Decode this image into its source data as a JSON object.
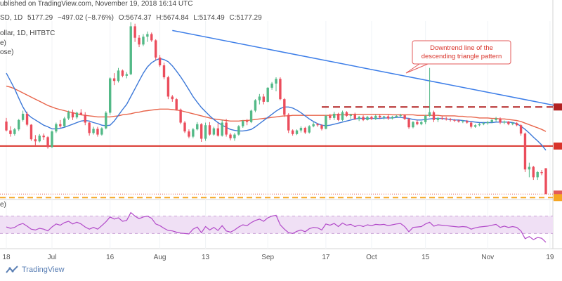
{
  "header": {
    "published": "ublished on TradingView.com, November 19, 2018 16:14 UTC",
    "symbol": "SD, 1D",
    "last": "5177.29",
    "change": "−497.02 (−8.76%)",
    "open_label": "O:",
    "open": "5674.37",
    "high_label": "H:",
    "high": "5674.84",
    "low_label": "L:",
    "low": "5174.49",
    "close_label": "C:",
    "close": "5177.29",
    "pair_line": "ollar, 1D, HITBTC",
    "ma1_label": "e)",
    "ma2_label": "ose)",
    "rsi_label": "e)"
  },
  "annotation": {
    "line1": "Downtrend line of the",
    "line2": "descending triangle pattern"
  },
  "footer": {
    "brand": "TradingView"
  },
  "colors": {
    "up": "#53b987",
    "down": "#eb4d5c",
    "ma_fast": "#3c78d8",
    "ma_slow": "#e8644a",
    "trend": "#3d7ee8",
    "support": "#d9342b",
    "resistance": "#b22222",
    "orange": "#f5a623",
    "rsi": "#b24ac9",
    "rsi_band": "#f0e0f5",
    "price_dotted": "#e35a5a"
  },
  "chart_data": {
    "type": "candlestick",
    "x_axis": {
      "ticks": [
        {
          "i": 0,
          "label": "18"
        },
        {
          "i": 11,
          "label": "Jul"
        },
        {
          "i": 25,
          "label": "16"
        },
        {
          "i": 37,
          "label": "Aug"
        },
        {
          "i": 48,
          "label": "13"
        },
        {
          "i": 63,
          "label": "Sep"
        },
        {
          "i": 77,
          "label": "17"
        },
        {
          "i": 88,
          "label": "Oct"
        },
        {
          "i": 101,
          "label": "15"
        },
        {
          "i": 116,
          "label": "Nov"
        },
        {
          "i": 131,
          "label": "19"
        }
      ]
    },
    "ylim": [
      5100,
      8500
    ],
    "candles": [
      [
        6570,
        6640,
        6380,
        6400
      ],
      [
        6400,
        6480,
        6280,
        6330
      ],
      [
        6330,
        6450,
        6300,
        6420
      ],
      [
        6420,
        6620,
        6390,
        6600
      ],
      [
        6600,
        6780,
        6570,
        6720
      ],
      [
        6720,
        6760,
        6480,
        6510
      ],
      [
        6510,
        6520,
        6200,
        6230
      ],
      [
        6230,
        6310,
        6100,
        6190
      ],
      [
        6190,
        6330,
        6170,
        6300
      ],
      [
        6300,
        6340,
        6220,
        6270
      ],
      [
        6270,
        6290,
        6050,
        6080
      ],
      [
        6080,
        6400,
        6060,
        6380
      ],
      [
        6380,
        6550,
        6350,
        6520
      ],
      [
        6520,
        6600,
        6450,
        6480
      ],
      [
        6480,
        6660,
        6460,
        6630
      ],
      [
        6630,
        6780,
        6600,
        6750
      ],
      [
        6750,
        6800,
        6600,
        6650
      ],
      [
        6650,
        6760,
        6620,
        6740
      ],
      [
        6740,
        6810,
        6690,
        6700
      ],
      [
        6700,
        6750,
        6500,
        6550
      ],
      [
        6550,
        6560,
        6300,
        6350
      ],
      [
        6350,
        6470,
        6320,
        6430
      ],
      [
        6430,
        6470,
        6280,
        6320
      ],
      [
        6320,
        6460,
        6300,
        6440
      ],
      [
        6440,
        6770,
        6420,
        6740
      ],
      [
        6740,
        7420,
        6700,
        7400
      ],
      [
        7400,
        7500,
        7270,
        7350
      ],
      [
        7350,
        7600,
        7320,
        7550
      ],
      [
        7550,
        7570,
        7420,
        7450
      ],
      [
        7450,
        7520,
        7400,
        7480
      ],
      [
        7480,
        8480,
        7460,
        8400
      ],
      [
        8400,
        8450,
        8100,
        8180
      ],
      [
        8180,
        8230,
        8000,
        8050
      ],
      [
        8050,
        8250,
        8020,
        8200
      ],
      [
        8200,
        8300,
        8100,
        8250
      ],
      [
        8250,
        8280,
        8100,
        8130
      ],
      [
        8130,
        8150,
        7750,
        7800
      ],
      [
        7800,
        7850,
        7620,
        7650
      ],
      [
        7650,
        7700,
        7380,
        7420
      ],
      [
        7420,
        7450,
        7000,
        7050
      ],
      [
        7050,
        7080,
        6950,
        7000
      ],
      [
        7000,
        7020,
        6780,
        6800
      ],
      [
        6800,
        6820,
        6520,
        6550
      ],
      [
        6550,
        6580,
        6350,
        6380
      ],
      [
        6380,
        6420,
        6250,
        6280
      ],
      [
        6280,
        6450,
        6250,
        6420
      ],
      [
        6420,
        6560,
        6400,
        6520
      ],
      [
        6520,
        6540,
        6180,
        6240
      ],
      [
        6240,
        6550,
        6200,
        6500
      ],
      [
        6500,
        6560,
        6300,
        6320
      ],
      [
        6320,
        6470,
        6300,
        6440
      ],
      [
        6440,
        6540,
        6280,
        6300
      ],
      [
        6300,
        6600,
        6280,
        6550
      ],
      [
        6550,
        6620,
        6280,
        6320
      ],
      [
        6320,
        6350,
        6210,
        6250
      ],
      [
        6250,
        6350,
        6200,
        6320
      ],
      [
        6320,
        6500,
        6300,
        6480
      ],
      [
        6480,
        6600,
        6450,
        6580
      ],
      [
        6580,
        6620,
        6500,
        6560
      ],
      [
        6560,
        6800,
        6540,
        6780
      ],
      [
        6780,
        7000,
        6750,
        6980
      ],
      [
        6980,
        7100,
        6900,
        7050
      ],
      [
        7050,
        7100,
        6900,
        6950
      ],
      [
        6950,
        7230,
        6940,
        7220
      ],
      [
        7220,
        7330,
        7180,
        7300
      ],
      [
        7300,
        7420,
        7150,
        7390
      ],
      [
        7390,
        7420,
        6980,
        7000
      ],
      [
        7000,
        7020,
        6660,
        6700
      ],
      [
        6700,
        6730,
        6350,
        6400
      ],
      [
        6400,
        6420,
        6300,
        6330
      ],
      [
        6330,
        6420,
        6310,
        6400
      ],
      [
        6400,
        6480,
        6360,
        6450
      ],
      [
        6450,
        6470,
        6330,
        6360
      ],
      [
        6360,
        6500,
        6340,
        6480
      ],
      [
        6480,
        6560,
        6460,
        6520
      ],
      [
        6520,
        6540,
        6470,
        6500
      ],
      [
        6500,
        6520,
        6400,
        6430
      ],
      [
        6430,
        6700,
        6420,
        6680
      ],
      [
        6680,
        6720,
        6600,
        6640
      ],
      [
        6640,
        6760,
        6600,
        6720
      ],
      [
        6720,
        6740,
        6580,
        6600
      ],
      [
        6600,
        6780,
        6580,
        6750
      ],
      [
        6750,
        6770,
        6660,
        6680
      ],
      [
        6680,
        6720,
        6620,
        6700
      ],
      [
        6700,
        6740,
        6600,
        6620
      ],
      [
        6620,
        6680,
        6580,
        6660
      ],
      [
        6660,
        6690,
        6580,
        6600
      ],
      [
        6600,
        6680,
        6590,
        6660
      ],
      [
        6660,
        6680,
        6600,
        6620
      ],
      [
        6620,
        6700,
        6600,
        6680
      ],
      [
        6680,
        6700,
        6620,
        6650
      ],
      [
        6650,
        6680,
        6610,
        6670
      ],
      [
        6670,
        6700,
        6600,
        6630
      ],
      [
        6630,
        6680,
        6610,
        6660
      ],
      [
        6660,
        6700,
        6640,
        6680
      ],
      [
        6680,
        6720,
        6650,
        6690
      ],
      [
        6690,
        6700,
        6600,
        6620
      ],
      [
        6620,
        6640,
        6430,
        6460
      ],
      [
        6460,
        6580,
        6440,
        6560
      ],
      [
        6560,
        6600,
        6500,
        6520
      ],
      [
        6520,
        6580,
        6500,
        6560
      ],
      [
        6560,
        6700,
        6520,
        6680
      ],
      [
        6680,
        7600,
        6660,
        6750
      ],
      [
        6750,
        6780,
        6560,
        6600
      ],
      [
        6600,
        6660,
        6560,
        6640
      ],
      [
        6640,
        6680,
        6600,
        6630
      ],
      [
        6630,
        6660,
        6590,
        6610
      ],
      [
        6610,
        6640,
        6570,
        6600
      ],
      [
        6600,
        6620,
        6560,
        6590
      ],
      [
        6590,
        6610,
        6550,
        6570
      ],
      [
        6570,
        6600,
        6540,
        6580
      ],
      [
        6580,
        6600,
        6530,
        6550
      ],
      [
        6550,
        6570,
        6440,
        6470
      ],
      [
        6470,
        6520,
        6450,
        6500
      ],
      [
        6500,
        6540,
        6480,
        6520
      ],
      [
        6520,
        6560,
        6500,
        6540
      ],
      [
        6540,
        6580,
        6510,
        6560
      ],
      [
        6560,
        6620,
        6540,
        6600
      ],
      [
        6600,
        6660,
        6570,
        6630
      ],
      [
        6630,
        6650,
        6520,
        6550
      ],
      [
        6550,
        6590,
        6520,
        6570
      ],
      [
        6570,
        6580,
        6500,
        6520
      ],
      [
        6520,
        6560,
        6500,
        6540
      ],
      [
        6540,
        6560,
        6480,
        6500
      ],
      [
        6500,
        6520,
        6300,
        6340
      ],
      [
        6340,
        6360,
        5600,
        5650
      ],
      [
        5650,
        5780,
        5500,
        5700
      ],
      [
        5700,
        5720,
        5450,
        5500
      ],
      [
        5500,
        5620,
        5450,
        5600
      ],
      [
        5600,
        5640,
        5540,
        5580
      ],
      [
        5674,
        5675,
        5174,
        5177
      ]
    ],
    "ma_fast": [
      7500,
      7350,
      7200,
      7020,
      6850,
      6720,
      6650,
      6600,
      6550,
      6500,
      6470,
      6430,
      6430,
      6440,
      6460,
      6490,
      6520,
      6550,
      6580,
      6590,
      6580,
      6550,
      6530,
      6500,
      6490,
      6500,
      6580,
      6690,
      6800,
      6900,
      7050,
      7200,
      7350,
      7500,
      7620,
      7700,
      7750,
      7780,
      7760,
      7720,
      7640,
      7540,
      7430,
      7310,
      7180,
      7050,
      6940,
      6840,
      6760,
      6680,
      6610,
      6550,
      6500,
      6460,
      6420,
      6400,
      6390,
      6390,
      6400,
      6420,
      6470,
      6530,
      6590,
      6650,
      6710,
      6770,
      6820,
      6850,
      6850,
      6830,
      6790,
      6740,
      6680,
      6620,
      6570,
      6530,
      6500,
      6490,
      6500,
      6520,
      6540,
      6560,
      6580,
      6600,
      6620,
      6630,
      6630,
      6630,
      6630,
      6630,
      6630,
      6640,
      6640,
      6640,
      6650,
      6650,
      6640,
      6630,
      6610,
      6600,
      6600,
      6610,
      6620,
      6630,
      6630,
      6630,
      6620,
      6610,
      6600,
      6600,
      6590,
      6580,
      6570,
      6560,
      6550,
      6550,
      6550,
      6550,
      6560,
      6560,
      6560,
      6560,
      6550,
      6530,
      6480,
      6420,
      6350,
      6270,
      6200,
      6120,
      6020
    ],
    "ma_slow": [
      7250,
      7230,
      7200,
      7160,
      7120,
      7080,
      7040,
      7000,
      6960,
      6920,
      6880,
      6850,
      6820,
      6800,
      6780,
      6760,
      6740,
      6720,
      6700,
      6690,
      6680,
      6670,
      6660,
      6660,
      6660,
      6660,
      6670,
      6680,
      6700,
      6710,
      6720,
      6740,
      6750,
      6770,
      6780,
      6790,
      6800,
      6810,
      6810,
      6810,
      6800,
      6790,
      6780,
      6760,
      6740,
      6720,
      6700,
      6680,
      6660,
      6640,
      6620,
      6610,
      6600,
      6590,
      6580,
      6580,
      6580,
      6590,
      6590,
      6600,
      6610,
      6620,
      6630,
      6640,
      6650,
      6660,
      6670,
      6680,
      6680,
      6690,
      6690,
      6690,
      6690,
      6690,
      6690,
      6690,
      6690,
      6690,
      6690,
      6700,
      6700,
      6700,
      6700,
      6710,
      6710,
      6710,
      6710,
      6710,
      6710,
      6710,
      6710,
      6710,
      6710,
      6700,
      6700,
      6700,
      6700,
      6700,
      6700,
      6690,
      6690,
      6690,
      6690,
      6690,
      6690,
      6680,
      6680,
      6680,
      6680,
      6670,
      6670,
      6660,
      6660,
      6650,
      6640,
      6640,
      6640,
      6630,
      6630,
      6620,
      6620,
      6610,
      6600,
      6590,
      6570,
      6540,
      6510,
      6480,
      6450,
      6420,
      6380
    ],
    "rsi": [
      45,
      42,
      44,
      50,
      53,
      47,
      40,
      38,
      42,
      40,
      36,
      45,
      52,
      49,
      55,
      58,
      52,
      56,
      52,
      45,
      40,
      44,
      40,
      48,
      57,
      68,
      63,
      66,
      58,
      60,
      78,
      70,
      64,
      68,
      70,
      65,
      52,
      48,
      42,
      37,
      36,
      33,
      31,
      30,
      29,
      40,
      45,
      32,
      46,
      38,
      44,
      37,
      48,
      36,
      33,
      38,
      45,
      50,
      48,
      55,
      60,
      63,
      58,
      66,
      70,
      72,
      50,
      40,
      32,
      30,
      35,
      38,
      34,
      41,
      44,
      43,
      38,
      52,
      49,
      53,
      46,
      54,
      49,
      51,
      46,
      49,
      46,
      50,
      48,
      51,
      50,
      51,
      48,
      50,
      52,
      53,
      46,
      34,
      44,
      45,
      46,
      52,
      56,
      47,
      50,
      49,
      48,
      47,
      46,
      45,
      46,
      45,
      40,
      43,
      45,
      46,
      47,
      49,
      51,
      44,
      47,
      44,
      46,
      44,
      36,
      18,
      23,
      16,
      21,
      19,
      10
    ],
    "trend_line": {
      "from": [
        40,
        8320
      ],
      "to": [
        136,
        6820
      ]
    },
    "resistance": 6850,
    "support": 6100,
    "orange_level": 5110,
    "current_price": 5177.29,
    "rsi_range": [
      0,
      100
    ]
  }
}
